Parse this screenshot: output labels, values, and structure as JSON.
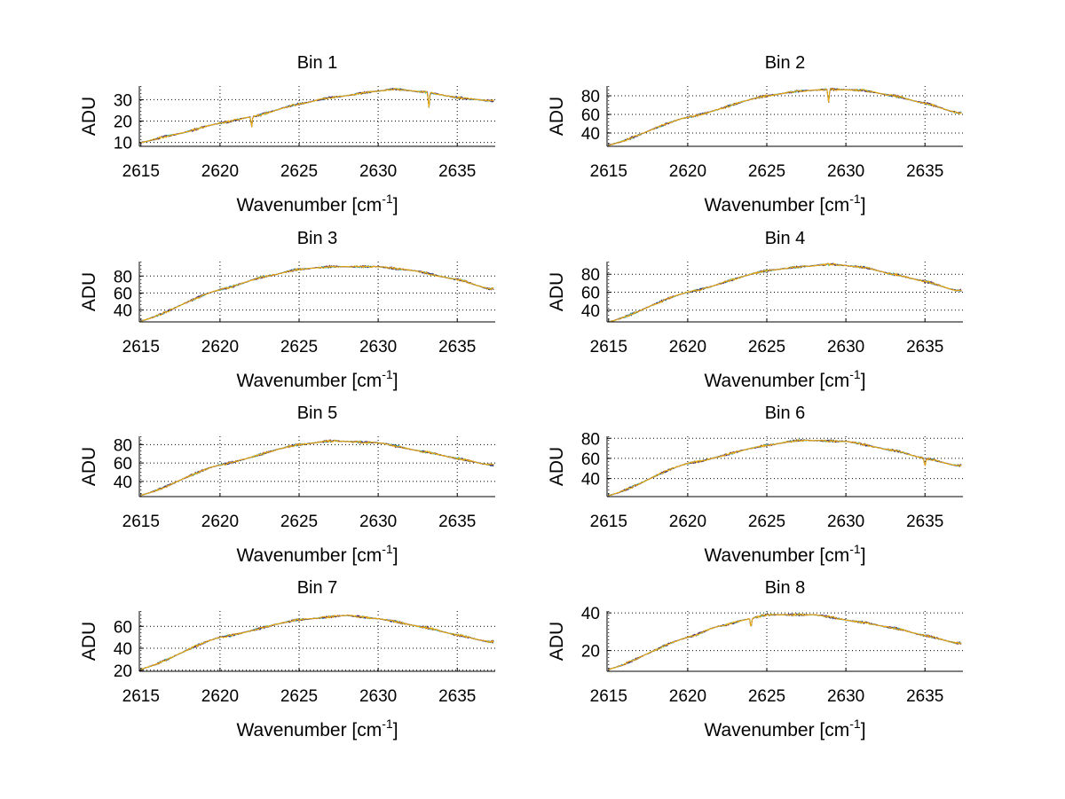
{
  "chart_data": [
    {
      "type": "line",
      "title": "Bin 1",
      "xlabel": "Wavenumber [cm",
      "xlabel_sup": "-1",
      "xlabel_end": "]",
      "ylabel": "ADU",
      "xlim": [
        2614.9,
        2637.4
      ],
      "ylim": [
        8.2,
        36.4
      ],
      "xticks": [
        2615,
        2620,
        2625,
        2630,
        2635
      ],
      "yticks": [
        10,
        20,
        30
      ],
      "grid": true,
      "profile": {
        "x": [
          2615,
          2617,
          2620,
          2622,
          2625,
          2627,
          2630,
          2631,
          2633,
          2635,
          2637
        ],
        "y": [
          10,
          13.5,
          19,
          22,
          28,
          31,
          34,
          35,
          33.5,
          31,
          29.5
        ]
      },
      "dips": [
        {
          "x": 2622,
          "y": 17
        },
        {
          "x": 2633.2,
          "y": 26
        }
      ]
    },
    {
      "type": "line",
      "title": "Bin 2",
      "xlabel": "Wavenumber [cm",
      "xlabel_sup": "-1",
      "xlabel_end": "]",
      "ylabel": "ADU",
      "xlim": [
        2614.9,
        2637.4
      ],
      "ylim": [
        25.7,
        90.5
      ],
      "xticks": [
        2615,
        2620,
        2625,
        2630,
        2635
      ],
      "yticks": [
        40,
        60,
        80
      ],
      "grid": true,
      "profile": {
        "x": [
          2615,
          2620,
          2625,
          2627,
          2629,
          2631,
          2633,
          2635,
          2637
        ],
        "y": [
          27,
          57,
          80,
          85,
          87,
          86,
          80,
          72,
          62
        ]
      },
      "dips": [
        {
          "x": 2628.9,
          "y": 72
        }
      ]
    },
    {
      "type": "line",
      "title": "Bin 3",
      "xlabel": "Wavenumber [cm",
      "xlabel_sup": "-1",
      "xlabel_end": "]",
      "ylabel": "ADU",
      "xlim": [
        2614.9,
        2637.4
      ],
      "ylim": [
        26,
        97
      ],
      "xticks": [
        2615,
        2620,
        2625,
        2630,
        2635
      ],
      "yticks": [
        40,
        60,
        80
      ],
      "grid": true,
      "profile": {
        "x": [
          2615,
          2620,
          2623,
          2625,
          2627,
          2630,
          2632,
          2635,
          2637
        ],
        "y": [
          27,
          64,
          80,
          88,
          91,
          91,
          87,
          76,
          65
        ]
      },
      "dips": []
    },
    {
      "type": "line",
      "title": "Bin 4",
      "xlabel": "Wavenumber [cm",
      "xlabel_sup": "-1",
      "xlabel_end": "]",
      "ylabel": "ADU",
      "xlim": [
        2614.9,
        2637.4
      ],
      "ylim": [
        27,
        94
      ],
      "xticks": [
        2615,
        2620,
        2625,
        2630,
        2635
      ],
      "yticks": [
        40,
        60,
        80
      ],
      "grid": true,
      "profile": {
        "x": [
          2615,
          2620,
          2625,
          2627,
          2629,
          2631,
          2633,
          2635,
          2637
        ],
        "y": [
          27,
          60,
          84,
          88,
          91,
          88,
          80,
          72,
          62
        ]
      },
      "dips": []
    },
    {
      "type": "line",
      "title": "Bin 5",
      "xlabel": "Wavenumber [cm",
      "xlabel_sup": "-1",
      "xlabel_end": "]",
      "ylabel": "ADU",
      "xlim": [
        2614.9,
        2637.4
      ],
      "ylim": [
        23.5,
        89
      ],
      "xticks": [
        2615,
        2620,
        2625,
        2630,
        2635
      ],
      "yticks": [
        40,
        60,
        80
      ],
      "grid": true,
      "profile": {
        "x": [
          2615,
          2620,
          2625,
          2627,
          2630,
          2633,
          2635,
          2637
        ],
        "y": [
          25,
          58,
          80,
          84,
          82,
          72,
          65,
          58
        ]
      },
      "dips": []
    },
    {
      "type": "line",
      "title": "Bin 6",
      "xlabel": "Wavenumber [cm",
      "xlabel_sup": "-1",
      "xlabel_end": "]",
      "ylabel": "ADU",
      "xlim": [
        2614.9,
        2637.4
      ],
      "ylim": [
        22,
        82
      ],
      "xticks": [
        2615,
        2620,
        2625,
        2630,
        2635
      ],
      "yticks": [
        40,
        60,
        80
      ],
      "grid": true,
      "profile": {
        "x": [
          2615,
          2620,
          2625,
          2627,
          2630,
          2633,
          2635,
          2637
        ],
        "y": [
          23,
          55,
          73,
          78,
          77,
          68,
          60,
          53
        ]
      },
      "dips": [
        {
          "x": 2635,
          "y": 52
        }
      ]
    },
    {
      "type": "line",
      "title": "Bin 7",
      "xlabel": "Wavenumber [cm",
      "xlabel_sup": "-1",
      "xlabel_end": "]",
      "ylabel": "ADU",
      "xlim": [
        2614.9,
        2637.4
      ],
      "ylim": [
        19,
        74
      ],
      "xticks": [
        2615,
        2620,
        2625,
        2630,
        2635
      ],
      "yticks": [
        20,
        40,
        60
      ],
      "grid": true,
      "profile": {
        "x": [
          2615,
          2620,
          2625,
          2628,
          2630,
          2633,
          2635,
          2637
        ],
        "y": [
          21,
          50,
          66,
          70,
          67,
          59,
          52,
          46
        ]
      },
      "dips": []
    },
    {
      "type": "line",
      "title": "Bin 8",
      "xlabel": "Wavenumber [cm",
      "xlabel_sup": "-1",
      "xlabel_end": "]",
      "ylabel": "ADU",
      "xlim": [
        2614.9,
        2637.4
      ],
      "ylim": [
        9,
        41
      ],
      "xticks": [
        2615,
        2620,
        2625,
        2630,
        2635
      ],
      "yticks": [
        20,
        40
      ],
      "grid": true,
      "profile": {
        "x": [
          2615,
          2620,
          2622,
          2624,
          2625,
          2628,
          2631,
          2633,
          2635,
          2637
        ],
        "y": [
          10,
          27,
          33,
          37,
          39,
          39,
          35,
          32,
          28,
          24
        ]
      },
      "dips": [
        {
          "x": 2624,
          "y": 32
        }
      ]
    }
  ],
  "series_colors": [
    "#1f2f8f",
    "#3cc8b0",
    "#5a2a6a",
    "#f5b000"
  ]
}
